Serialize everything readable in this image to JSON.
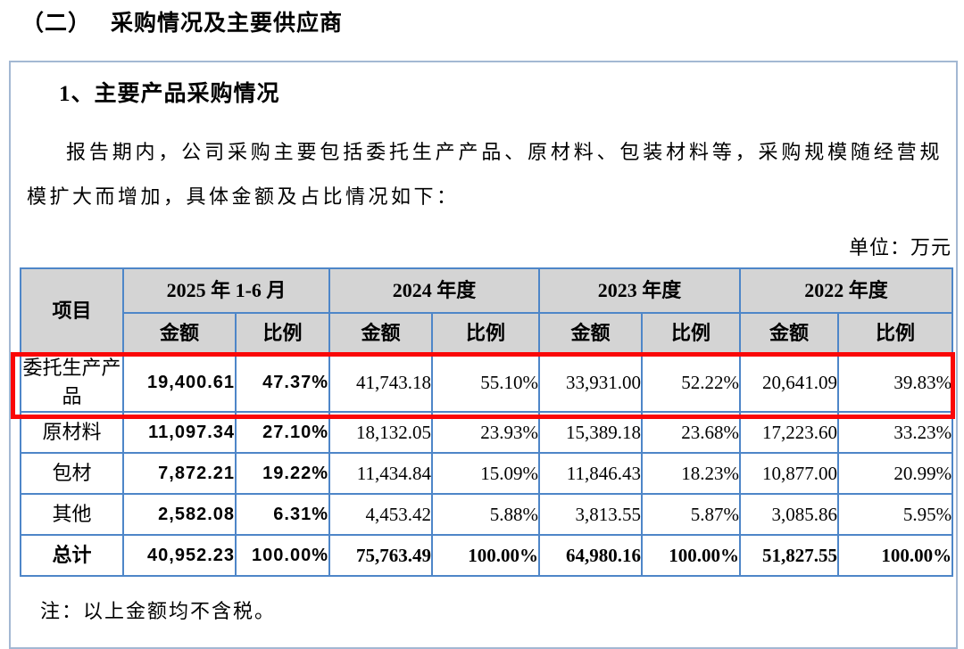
{
  "header": {
    "section_number": "（二）",
    "section_title": "采购情况及主要供应商"
  },
  "box": {
    "subsection_title": "1、主要产品采购情况",
    "paragraph": "报告期内，公司采购主要包括委托生产产品、原材料、包装材料等，采购规模随经营规模扩大而增加，具体金额及占比情况如下：",
    "unit_label": "单位：万元",
    "note": "注：以上金额均不含税。"
  },
  "table": {
    "corner_header": "项目",
    "period_headers": [
      "2025 年 1-6 月",
      "2024 年度",
      "2023 年度",
      "2022 年度"
    ],
    "sub_headers": [
      "金额",
      "比例"
    ],
    "rows": [
      {
        "label": "委托生产产品",
        "highlighted": true,
        "bold": false,
        "values": [
          "19,400.61",
          "47.37%",
          "41,743.18",
          "55.10%",
          "33,931.00",
          "52.22%",
          "20,641.09",
          "39.83%"
        ]
      },
      {
        "label": "原材料",
        "highlighted": false,
        "bold": false,
        "values": [
          "11,097.34",
          "27.10%",
          "18,132.05",
          "23.93%",
          "15,389.18",
          "23.68%",
          "17,223.60",
          "33.23%"
        ]
      },
      {
        "label": "包材",
        "highlighted": false,
        "bold": false,
        "values": [
          "7,872.21",
          "19.22%",
          "11,434.84",
          "15.09%",
          "11,846.43",
          "18.23%",
          "10,877.00",
          "20.99%"
        ]
      },
      {
        "label": "其他",
        "highlighted": false,
        "bold": false,
        "values": [
          "2,582.08",
          "6.31%",
          "4,453.42",
          "5.88%",
          "3,813.55",
          "5.87%",
          "3,085.86",
          "5.95%"
        ]
      },
      {
        "label": "总计",
        "highlighted": false,
        "bold": true,
        "values": [
          "40,952.23",
          "100.00%",
          "75,763.49",
          "100.00%",
          "64,980.16",
          "100.00%",
          "51,827.55",
          "100.00%"
        ]
      }
    ]
  },
  "colors": {
    "table_border": "#4e86c8",
    "header_bg": "#d4d4d4",
    "highlight_red": "#fa0707",
    "box_border": "#a3b8d3"
  }
}
